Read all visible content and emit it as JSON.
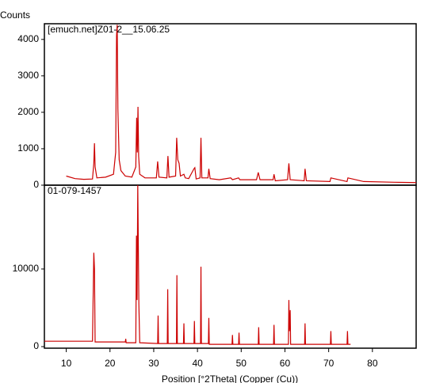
{
  "chart_data": [
    {
      "type": "line",
      "y_label": "Counts",
      "label": "[emuch.net]Z01-2__15.06.25",
      "color": "#cc0000",
      "xlim": [
        5,
        90
      ],
      "ylim": [
        0,
        4430
      ],
      "yticks": [
        0,
        1000,
        2000,
        3000,
        4000
      ],
      "x": [
        10,
        12,
        14,
        16,
        16.3,
        16.45,
        16.6,
        17,
        19,
        20.8,
        21.3,
        21.5,
        21.65,
        21.8,
        22.1,
        22.5,
        23.5,
        25,
        25.9,
        26.1,
        26.25,
        26.4,
        26.55,
        26.8,
        28,
        30.6,
        30.9,
        31.2,
        33,
        33.25,
        33.5,
        35,
        35.25,
        35.5,
        35.8,
        36.1,
        36.9,
        37.2,
        38,
        39.2,
        39.4,
        39.7,
        40.6,
        40.8,
        41,
        42.4,
        42.6,
        42.9,
        45,
        47.6,
        48,
        49.4,
        49.7,
        53.5,
        53.9,
        54.3,
        57.3,
        57.5,
        57.8,
        60.6,
        60.9,
        61.2,
        64.4,
        64.6,
        64.9,
        70.3,
        70.5,
        74.2,
        74.4,
        78,
        85,
        90
      ],
      "values": [
        250,
        180,
        160,
        170,
        600,
        1150,
        500,
        200,
        220,
        300,
        900,
        4100,
        4400,
        2100,
        700,
        400,
        250,
        220,
        500,
        1850,
        900,
        2150,
        800,
        300,
        200,
        200,
        650,
        220,
        200,
        800,
        220,
        250,
        1300,
        700,
        600,
        250,
        300,
        200,
        180,
        450,
        480,
        170,
        200,
        1300,
        200,
        200,
        450,
        180,
        150,
        200,
        150,
        200,
        150,
        150,
        350,
        150,
        150,
        300,
        120,
        150,
        600,
        150,
        120,
        450,
        120,
        100,
        200,
        100,
        200,
        100,
        80,
        70
      ]
    },
    {
      "type": "line",
      "label": "01-079-1457",
      "x_label": "Position [°2Theta] (Copper (Cu))",
      "color": "#cc0000",
      "xlim": [
        5,
        90
      ],
      "ylim": [
        -200,
        20800
      ],
      "yticks": [
        0,
        10000
      ],
      "xticks": [
        10,
        20,
        30,
        40,
        50,
        60,
        70,
        80
      ],
      "x": [
        5,
        16,
        16.3,
        16.45,
        16.6,
        23.5,
        23.6,
        23.7,
        25.9,
        26.05,
        26.2,
        26.35,
        26.6,
        26.8,
        30.9,
        31.0,
        31.1,
        33.1,
        33.2,
        33.3,
        35.2,
        35.3,
        35.4,
        36.8,
        36.9,
        37.0,
        39.2,
        39.3,
        39.4,
        40.7,
        40.8,
        40.9,
        42.5,
        42.6,
        42.7,
        47.9,
        48.0,
        48.1,
        49.4,
        49.5,
        49.6,
        53.9,
        54.0,
        54.1,
        57.4,
        57.5,
        57.6,
        60.8,
        60.9,
        61.0,
        61.2,
        61.3,
        64.5,
        64.6,
        64.7,
        70.4,
        70.5,
        70.6,
        74.2,
        74.3,
        74.4,
        75
      ],
      "values": [
        700,
        700,
        12100,
        10000,
        600,
        600,
        1000,
        500,
        500,
        14300,
        6000,
        21000,
        5500,
        500,
        400,
        4000,
        400,
        400,
        7400,
        400,
        400,
        9200,
        400,
        400,
        3000,
        400,
        400,
        3300,
        400,
        400,
        10300,
        400,
        400,
        3700,
        300,
        300,
        1500,
        300,
        300,
        1800,
        300,
        300,
        2500,
        300,
        300,
        2800,
        300,
        300,
        6000,
        2000,
        4700,
        300,
        300,
        3000,
        300,
        300,
        2000,
        300,
        300,
        2000,
        300,
        300
      ]
    }
  ]
}
